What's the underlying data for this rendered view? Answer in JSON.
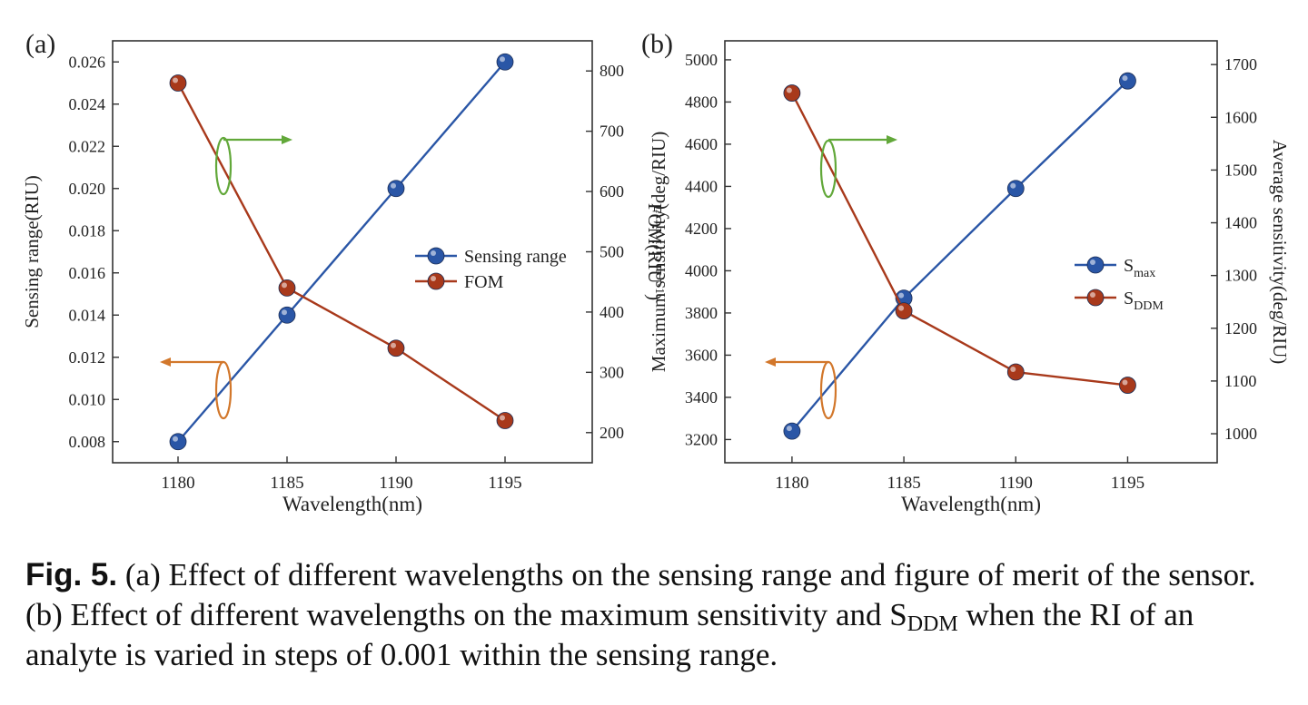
{
  "chart_data": [
    {
      "type": "line",
      "panel_label": "(a)",
      "x": [
        1180,
        1185,
        1190,
        1195
      ],
      "xlabel": "Wavelength(nm)",
      "xlim": [
        1177,
        1199
      ],
      "xticks": [
        1180,
        1185,
        1190,
        1195
      ],
      "ylabel": "Sensing range(RIU)",
      "ylim": [
        0.007,
        0.027
      ],
      "yticks": [
        0.008,
        0.01,
        0.012,
        0.014,
        0.016,
        0.018,
        0.02,
        0.022,
        0.024,
        0.026
      ],
      "ytick_labels": [
        "0.008",
        "0.010",
        "0.012",
        "0.014",
        "0.016",
        "0.018",
        "0.020",
        "0.022",
        "0.024",
        "0.026"
      ],
      "y2label_main": "FOM(RIU",
      "y2label_sup": "-1",
      "y2label_end": ")",
      "y2lim": [
        150,
        850
      ],
      "y2ticks": [
        200,
        300,
        400,
        500,
        600,
        700,
        800
      ],
      "y2tick_labels": [
        "200",
        "300",
        "400",
        "500",
        "600",
        "700",
        "800"
      ],
      "grid": false,
      "legend": "center-right",
      "series": [
        {
          "name": "Sensing range",
          "axis": "left",
          "color": "#2a56a6",
          "values": [
            0.008,
            0.014,
            0.02,
            0.026
          ]
        },
        {
          "name": "FOM",
          "axis": "right",
          "color": "#a8391b",
          "values": [
            780,
            440,
            340,
            220
          ]
        }
      ]
    },
    {
      "type": "line",
      "panel_label": "(b)",
      "x": [
        1180,
        1185,
        1190,
        1195
      ],
      "xlabel": "Wavelength(nm)",
      "xlim": [
        1177,
        1199
      ],
      "xticks": [
        1180,
        1185,
        1190,
        1195
      ],
      "ylabel": "Maximum sensitivity(deg/RIU)",
      "ylim": [
        3090,
        5090
      ],
      "yticks": [
        3200,
        3400,
        3600,
        3800,
        4000,
        4200,
        4400,
        4600,
        4800,
        5000
      ],
      "ytick_labels": [
        "3200",
        "3400",
        "3600",
        "3800",
        "4000",
        "4200",
        "4400",
        "4600",
        "4800",
        "5000"
      ],
      "y2label_main": "Average sensitivity(deg/RIU)",
      "y2label_sup": "",
      "y2label_end": "",
      "y2lim": [
        945,
        1745
      ],
      "y2ticks": [
        1000,
        1100,
        1200,
        1300,
        1400,
        1500,
        1600,
        1700
      ],
      "y2tick_labels": [
        "1000",
        "1100",
        "1200",
        "1300",
        "1400",
        "1500",
        "1600",
        "1700"
      ],
      "grid": false,
      "legend": "center-right",
      "series": [
        {
          "name": "S",
          "sub": "max",
          "axis": "left",
          "color": "#2a56a6",
          "values": [
            3240,
            3870,
            4390,
            4900
          ]
        },
        {
          "name": "S",
          "sub": "DDM",
          "axis": "right",
          "color": "#a8391b",
          "values": [
            1646,
            1233,
            1117,
            1092
          ]
        }
      ]
    }
  ],
  "caption": {
    "label": "Fig. 5.",
    "text_a": "(a) Effect of different wavelengths on the sensing range and figure of merit of the sensor. (b) Effect of different wavelengths on the maximum sensitivity and S",
    "sub": "DDM",
    "text_b": " when the RI of an analyte is varied in steps of 0.001 within the sensing range."
  }
}
